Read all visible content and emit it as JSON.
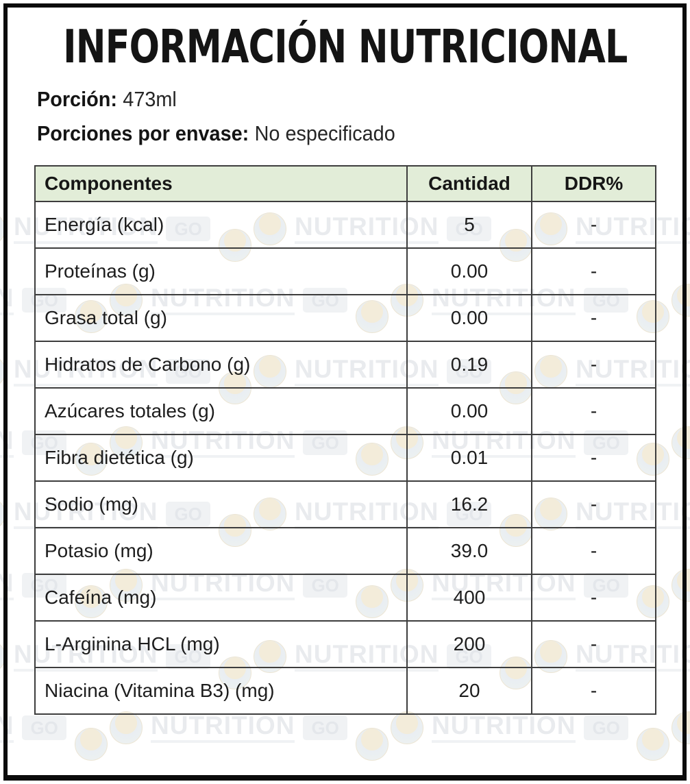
{
  "title": "INFORMACIÓN NUTRICIONAL",
  "serving": {
    "label": "Porción:",
    "value": "473ml"
  },
  "servings_per_container": {
    "label": "Porciones por envase:",
    "value": "No especificado"
  },
  "table": {
    "headers": [
      "Componentes",
      "Cantidad",
      "DDR%"
    ],
    "rows": [
      {
        "component": "Energía (kcal)",
        "amount": "5",
        "ddr": "-"
      },
      {
        "component": "Proteínas (g)",
        "amount": "0.00",
        "ddr": "-"
      },
      {
        "component": "Grasa total (g)",
        "amount": "0.00",
        "ddr": "-"
      },
      {
        "component": "Hidratos de Carbono (g)",
        "amount": "0.19",
        "ddr": "-"
      },
      {
        "component": "Azúcares totales (g)",
        "amount": "0.00",
        "ddr": "-"
      },
      {
        "component": "Fibra dietética (g)",
        "amount": "0.01",
        "ddr": "-"
      },
      {
        "component": "Sodio (mg)",
        "amount": "16.2",
        "ddr": "-"
      },
      {
        "component": "Potasio (mg)",
        "amount": "39.0",
        "ddr": "-"
      },
      {
        "component": "Cafeína (mg)",
        "amount": "400",
        "ddr": "-"
      },
      {
        "component": "L-Arginina HCL (mg)",
        "amount": "200",
        "ddr": "-"
      },
      {
        "component": "Niacina (Vitamina B3) (mg)",
        "amount": "20",
        "ddr": "-"
      }
    ]
  },
  "watermark": {
    "text": "NUTRITION",
    "badge": "GO"
  },
  "colors": {
    "header_bg": "#e2edd8",
    "table_border": "#3d3d3d",
    "frame": "#0b0b0b",
    "watermark_text": "#e9ebee"
  }
}
